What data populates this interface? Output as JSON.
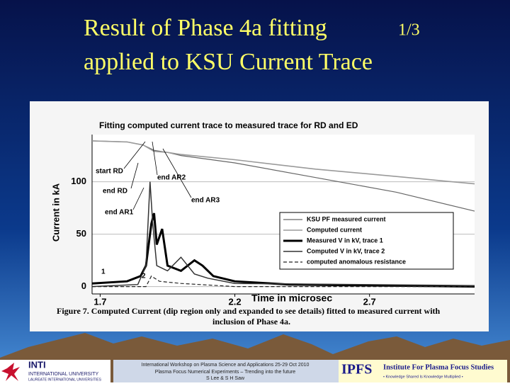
{
  "slide": {
    "title_line1": "Result of Phase 4a fitting",
    "title_page": "1/3",
    "title_line2": "applied to KSU Current Trace",
    "footer": [
      "International Workshop on Plasma Science and Applications 25-29 Oct 2010",
      "Plasma Focus Numerical Experiments – Trending into the future",
      "S Lee & S H Saw"
    ],
    "left_logo": {
      "name": "INTI",
      "line1": "INTERNATIONAL UNIVERSITY",
      "line2": "LAUREATE INTERNATIONAL UNIVERSITIES"
    },
    "right_logo": {
      "name": "IPFS",
      "line1": "Institute For Plasma Focus Studies",
      "line2": "• Knowledge Shared Is Knowledge Multiplied •"
    }
  },
  "chart_data": {
    "type": "line",
    "title": "Fitting computed current trace to measured trace for RD and ED",
    "ylabel": "Current in kA",
    "xlabel": "Time in microsec",
    "caption": [
      "Figure 7. Computed Current (dip region only and expanded to see details) fitted to measured current with",
      "inclusion of Phase 4a."
    ],
    "xlim": [
      1.67,
      3.09
    ],
    "xticks": [
      1.7,
      2.2,
      2.7
    ],
    "ylim": [
      -7,
      145
    ],
    "yticks": [
      0,
      50,
      100
    ],
    "grid": true,
    "legend": "right",
    "annotations": [
      "start RD",
      "end RD",
      "end AR1",
      "end AR2",
      "end AR3",
      "1",
      "2"
    ],
    "series": [
      {
        "name": "KSU PF measured current",
        "color": "#666666",
        "width": 1.2,
        "dash": false,
        "x": [
          1.67,
          1.8,
          1.86,
          1.9,
          1.95,
          2.0,
          2.2,
          2.5,
          2.8,
          3.09
        ],
        "values": [
          139,
          138,
          135,
          130,
          128,
          125,
          118,
          104,
          90,
          72
        ]
      },
      {
        "name": "Computed current",
        "color": "#9a9a9a",
        "width": 1.6,
        "dash": false,
        "x": [
          1.67,
          1.8,
          1.86,
          1.9,
          1.95,
          2.0,
          2.2,
          2.5,
          2.8,
          3.09
        ],
        "values": [
          139,
          138,
          135,
          129,
          128,
          126,
          121,
          112,
          105,
          98
        ]
      },
      {
        "name": "Measured V in kV, trace 1",
        "color": "#000000",
        "width": 3,
        "dash": false,
        "x": [
          1.67,
          1.8,
          1.85,
          1.87,
          1.89,
          1.9,
          1.91,
          1.93,
          1.95,
          2.0,
          2.05,
          2.08,
          2.12,
          2.2,
          2.4,
          3.09
        ],
        "values": [
          3,
          5,
          10,
          20,
          60,
          70,
          40,
          55,
          20,
          15,
          25,
          20,
          10,
          5,
          2,
          0
        ]
      },
      {
        "name": "Computed V in kV, trace 2",
        "color": "#333333",
        "width": 1.5,
        "dash": false,
        "x": [
          1.67,
          1.84,
          1.87,
          1.885,
          1.895,
          1.91,
          1.95,
          2.0,
          2.05,
          2.1,
          2.2,
          3.09
        ],
        "values": [
          0,
          2,
          20,
          100,
          60,
          20,
          15,
          28,
          12,
          8,
          3,
          1
        ]
      },
      {
        "name": "computed anomalous resistance",
        "color": "#222222",
        "width": 1.2,
        "dash": true,
        "x": [
          1.67,
          1.87,
          1.89,
          1.92,
          2.0,
          2.2,
          3.09
        ],
        "values": [
          0,
          0,
          10,
          5,
          3,
          0,
          0
        ]
      }
    ]
  }
}
